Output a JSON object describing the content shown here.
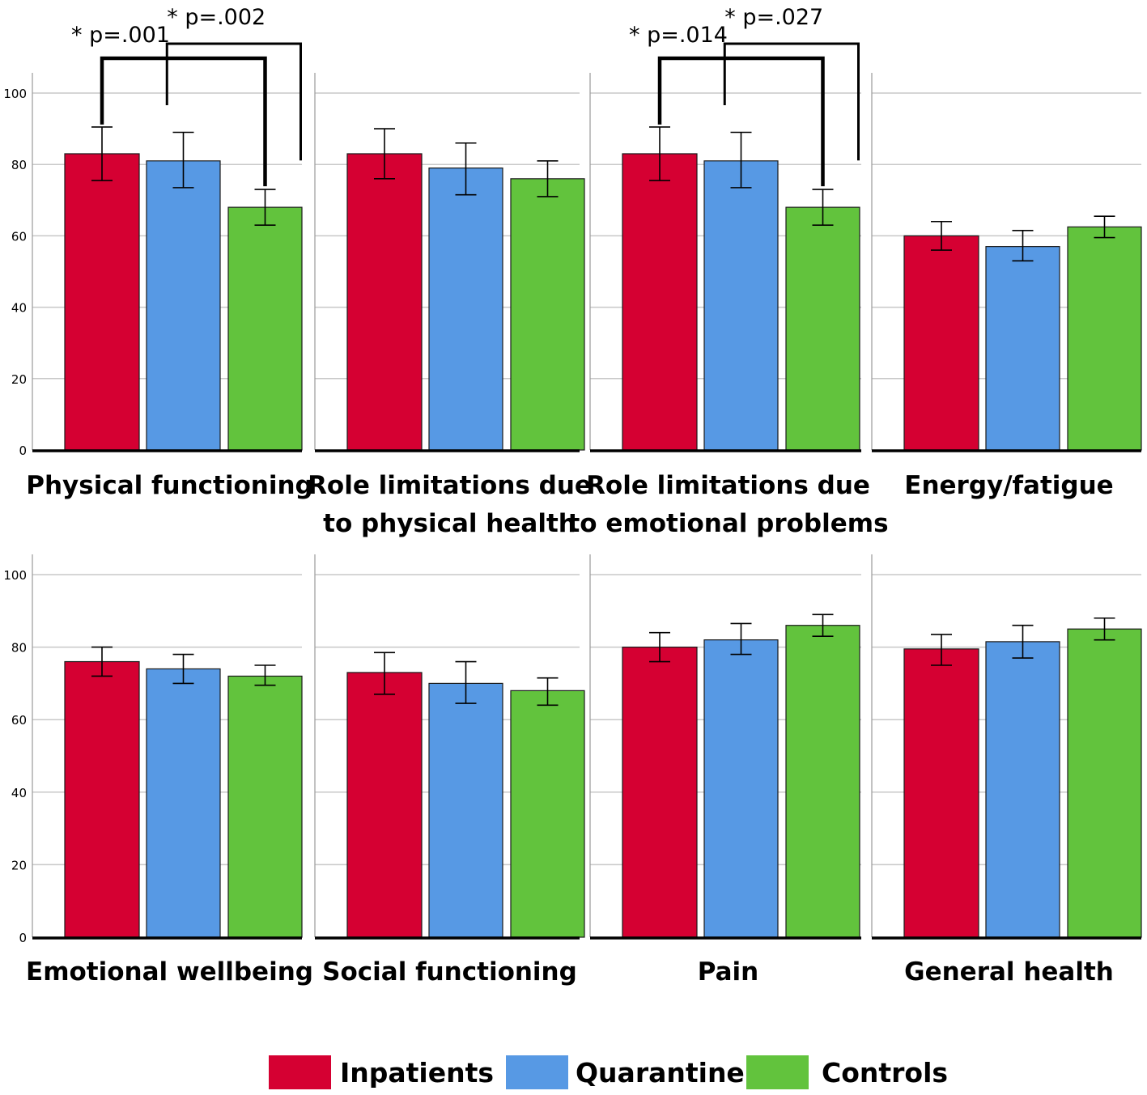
{
  "chart_data": {
    "type": "bar",
    "ylim": [
      0,
      100
    ],
    "yticks": [
      "0",
      "20",
      "40",
      "60",
      "80",
      "100"
    ],
    "series": [
      {
        "name": "Inpatients",
        "color": "#d50032"
      },
      {
        "name": "Quarantine",
        "color": "#5799e4"
      },
      {
        "name": "Controls",
        "color": "#62c33d"
      }
    ],
    "panels": [
      {
        "title": [
          "Physical functioning"
        ],
        "values": [
          83,
          81,
          68
        ],
        "ci": [
          [
            75.5,
            90.5
          ],
          [
            73.5,
            89
          ],
          [
            63,
            73
          ]
        ],
        "annotations": [
          {
            "text": "* p=.001",
            "from": 0,
            "to": 2
          },
          {
            "text": "* p=.002",
            "from": 1,
            "to": 2
          }
        ]
      },
      {
        "title": [
          "Role limitations due",
          "to physical health"
        ],
        "values": [
          83,
          79,
          76
        ],
        "ci": [
          [
            76,
            90
          ],
          [
            71.5,
            86
          ],
          [
            71,
            81
          ]
        ],
        "annotations": []
      },
      {
        "title": [
          "Role limitations due",
          "to emotional problems"
        ],
        "values": [
          83,
          81,
          68
        ],
        "ci": [
          [
            75.5,
            90.5
          ],
          [
            73.5,
            89
          ],
          [
            63,
            73
          ]
        ],
        "annotations": [
          {
            "text": "* p=.014",
            "from": 0,
            "to": 2
          },
          {
            "text": "* p=.027",
            "from": 1,
            "to": 2
          }
        ]
      },
      {
        "title": [
          "Energy/fatigue"
        ],
        "values": [
          60,
          57,
          62.5
        ],
        "ci": [
          [
            56,
            64
          ],
          [
            53,
            61.5
          ],
          [
            59.5,
            65.5
          ]
        ],
        "annotations": []
      },
      {
        "title": [
          "Emotional wellbeing"
        ],
        "values": [
          76,
          74,
          72
        ],
        "ci": [
          [
            72,
            80
          ],
          [
            70,
            78
          ],
          [
            69.5,
            75
          ]
        ],
        "annotations": []
      },
      {
        "title": [
          "Social functioning"
        ],
        "values": [
          73,
          70,
          68
        ],
        "ci": [
          [
            67,
            78.5
          ],
          [
            64.5,
            76
          ],
          [
            64,
            71.5
          ]
        ],
        "annotations": []
      },
      {
        "title": [
          "Pain"
        ],
        "values": [
          80,
          82,
          86
        ],
        "ci": [
          [
            76,
            84
          ],
          [
            78,
            86.5
          ],
          [
            83,
            89
          ]
        ],
        "annotations": []
      },
      {
        "title": [
          "General health"
        ],
        "values": [
          79.5,
          81.5,
          85
        ],
        "ci": [
          [
            75,
            83.5
          ],
          [
            77,
            86
          ],
          [
            82,
            88
          ]
        ],
        "annotations": []
      }
    ]
  }
}
